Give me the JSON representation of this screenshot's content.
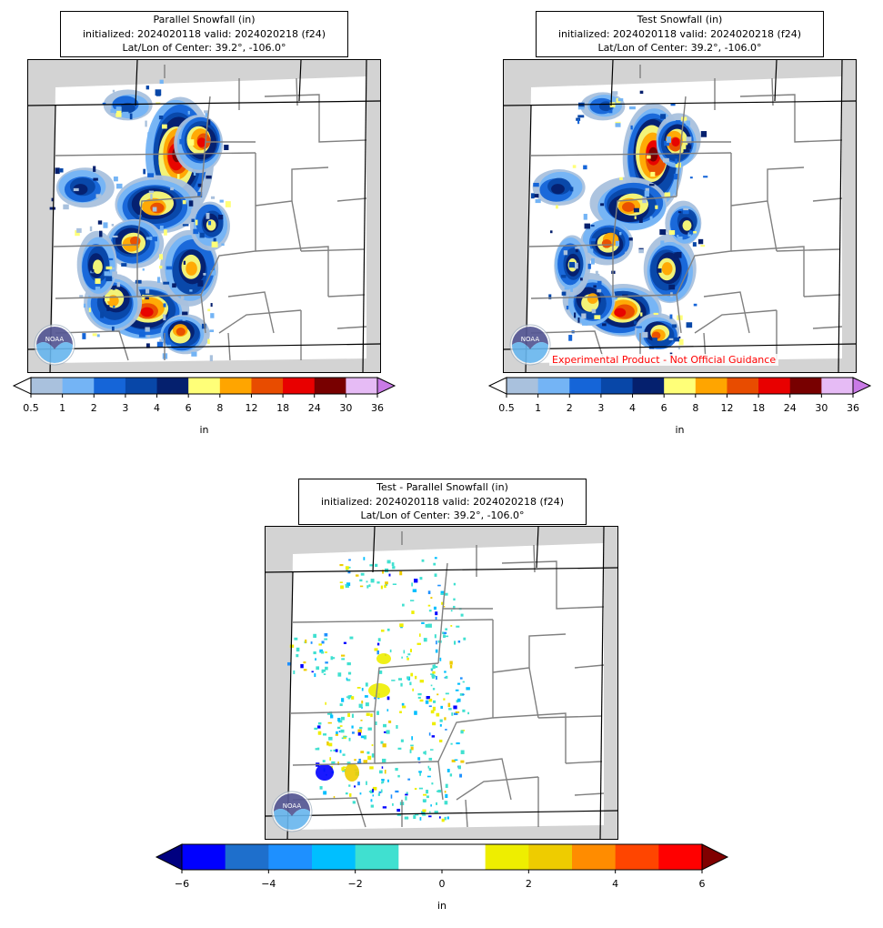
{
  "panels": [
    {
      "id": "parallel",
      "title_lines": [
        "Parallel Snowfall (in)",
        "initialized: 2024020118 valid: 2024020218 (f24)",
        "Lat/Lon of Center: 39.2°, -106.0°"
      ],
      "colorbar": "snow",
      "field": "snowfall"
    },
    {
      "id": "test",
      "title_lines": [
        "Test Snowfall (in)",
        "initialized: 2024020118 valid: 2024020218 (f24)",
        "Lat/Lon of Center: 39.2°, -106.0°"
      ],
      "colorbar": "snow",
      "field": "snowfall",
      "disclaimer": "Experimental Product - Not Official Guidance"
    },
    {
      "id": "diff",
      "title_lines": [
        "Test - Parallel Snowfall (in)",
        "initialized: 2024020118 valid: 2024020218 (f24)",
        "Lat/Lon of Center: 39.2°, -106.0°"
      ],
      "colorbar": "diff",
      "field": "difference"
    }
  ],
  "colorbars": {
    "snow": {
      "unit": "in",
      "ticks": [
        "0.5",
        "1",
        "2",
        "3",
        "4",
        "6",
        "8",
        "12",
        "18",
        "24",
        "30",
        "36"
      ],
      "under_color": "#ffffff",
      "over_color": "#c97ae6",
      "colors": [
        "#a9c1dd",
        "#74b4f5",
        "#1565d8",
        "#0847a8",
        "#05206e",
        "#ffff78",
        "#ffa500",
        "#e84c00",
        "#e80000",
        "#780000",
        "#e6bbf5"
      ]
    },
    "diff": {
      "unit": "in",
      "ticks": [
        "−6",
        "−4",
        "−2",
        "0",
        "2",
        "4",
        "6"
      ],
      "under_color": "#000080",
      "over_color": "#800000",
      "colors": [
        "#0000ff",
        "#1e6fcc",
        "#1e90ff",
        "#00bfff",
        "#40e0d0",
        "#ffffff",
        "#ffffff",
        "#eeee00",
        "#eecc00",
        "#ff8c00",
        "#ff4500",
        "#ff0000"
      ]
    }
  },
  "logo": {
    "name": "noaa-logo",
    "text": "NOAA"
  }
}
